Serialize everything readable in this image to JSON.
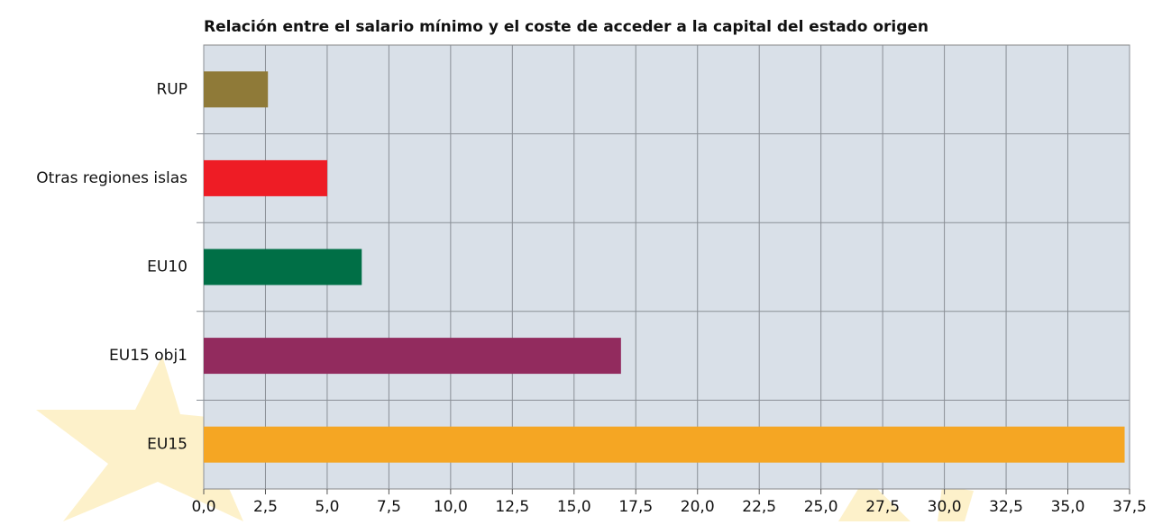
{
  "chart_data": {
    "type": "bar",
    "orientation": "horizontal",
    "title": "Relación entre el salario mínimo y el coste de acceder a la capital del estado origen",
    "categories": [
      "RUP",
      "Otras regiones islas",
      "EU10",
      "EU15 obj1",
      "EU15"
    ],
    "values": [
      2.6,
      5.0,
      6.4,
      16.9,
      37.3
    ],
    "colors": [
      "#8f7a38",
      "#ee1c25",
      "#006f46",
      "#922b5e",
      "#f5a623"
    ],
    "xlim": [
      0,
      37.5
    ],
    "xticks": [
      {
        "value": 0,
        "label": "0,0"
      },
      {
        "value": 2.5,
        "label": "2,5"
      },
      {
        "value": 5,
        "label": "5,0"
      },
      {
        "value": 7.5,
        "label": "7,5"
      },
      {
        "value": 10,
        "label": "10,0"
      },
      {
        "value": 12.5,
        "label": "12,5"
      },
      {
        "value": 15,
        "label": "15,0"
      },
      {
        "value": 17.5,
        "label": "17,5"
      },
      {
        "value": 20,
        "label": "20,0"
      },
      {
        "value": 22.5,
        "label": "22,5"
      },
      {
        "value": 25,
        "label": "25,0"
      },
      {
        "value": 27.5,
        "label": "27,5"
      },
      {
        "value": 30,
        "label": "30,0"
      },
      {
        "value": 32.5,
        "label": "32,5"
      },
      {
        "value": 35,
        "label": "35,0"
      },
      {
        "value": 37.5,
        "label": "37,5"
      }
    ],
    "grid": true
  }
}
